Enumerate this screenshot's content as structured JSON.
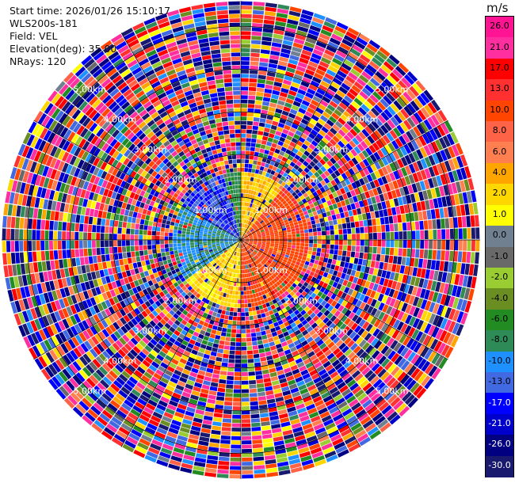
{
  "header": {
    "start_time": "Start time: 2026/01/26 15:10:17",
    "instrument": "WLS200s-181",
    "field": "Field: VEL",
    "elevation": "Elevation(deg): 35.00",
    "nrays": "NRays: 120"
  },
  "colorbar": {
    "unit": "m/s",
    "ticks": [
      "26.0",
      "21.0",
      "17.0",
      "13.0",
      "10.0",
      "8.0",
      "6.0",
      "4.0",
      "2.0",
      "1.0",
      "0.0",
      "-1.0",
      "-2.0",
      "-4.0",
      "-6.0",
      "-8.0",
      "-10.0",
      "-13.0",
      "-17.0",
      "-21.0",
      "-26.0",
      "-30.0"
    ],
    "colors": [
      "#ff1493",
      "#ff2fa0",
      "#ff0000",
      "#ff3030",
      "#ff4500",
      "#ff6347",
      "#ff7f50",
      "#ffa500",
      "#ffd700",
      "#ffff00",
      "#708090",
      "#696969",
      "#9acd32",
      "#6b8e23",
      "#228b22",
      "#2e8b57",
      "#1e90ff",
      "#4169e1",
      "#0000ff",
      "#0000cd",
      "#000080",
      "#191970"
    ]
  },
  "chart_data": {
    "type": "ppi-radial",
    "field": "VEL",
    "units": "m/s",
    "elevation_deg": 35.0,
    "n_rays": 120,
    "range_rings_km": [
      1,
      2,
      3,
      4,
      5
    ],
    "ring_labels": [
      "1.00km",
      "2.00km",
      "3.00km",
      "4.00km",
      "5.00km"
    ],
    "max_range_km": 5.6,
    "velocity_regions": [
      {
        "azimuth_from_deg": 0,
        "azimuth_to_deg": 40,
        "range_km": [
          0,
          1.6
        ],
        "velocity_ms": 4.0
      },
      {
        "azimuth_from_deg": 40,
        "azimuth_to_deg": 180,
        "range_km": [
          0,
          1.6
        ],
        "velocity_ms": 12.0
      },
      {
        "azimuth_from_deg": 180,
        "azimuth_to_deg": 235,
        "range_km": [
          0,
          1.6
        ],
        "velocity_ms": 3.0
      },
      {
        "azimuth_from_deg": 235,
        "azimuth_to_deg": 300,
        "range_km": [
          0,
          1.6
        ],
        "velocity_ms": -8.0
      },
      {
        "azimuth_from_deg": 300,
        "azimuth_to_deg": 345,
        "range_km": [
          0,
          1.6
        ],
        "velocity_ms": -13.0
      },
      {
        "azimuth_from_deg": 345,
        "azimuth_to_deg": 360,
        "range_km": [
          0,
          1.6
        ],
        "velocity_ms": -6.0
      }
    ],
    "far_range_note_km": [
      1.6,
      5.6
    ],
    "far_range_pattern": "noise"
  }
}
